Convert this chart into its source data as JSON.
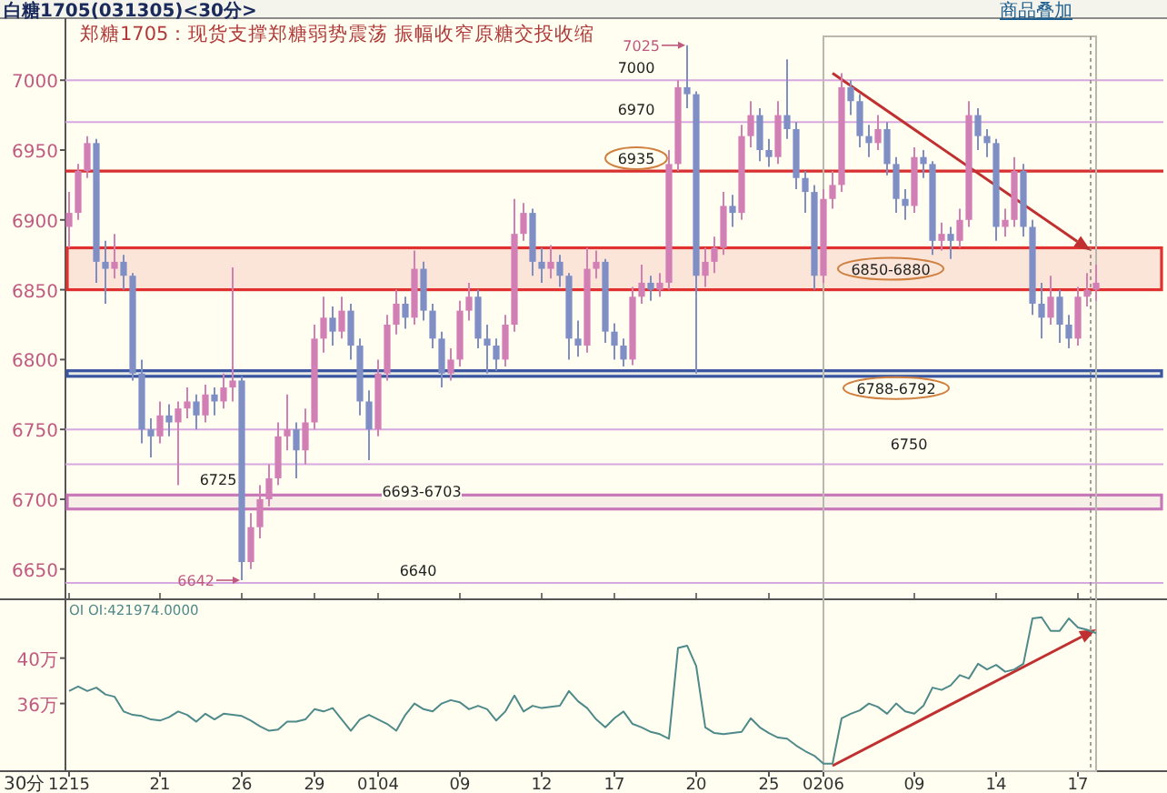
{
  "chart_data": [
    {
      "type": "candlestick",
      "title": "白糖1705(031305)<30分>",
      "subtitle": "郑糖1705：现货支撑郑糖弱势震荡 振幅收窄原糖交投收缩",
      "categories": [
        "1215",
        null,
        null,
        null,
        null,
        null,
        null,
        null,
        null,
        null,
        "21",
        null,
        null,
        null,
        null,
        null,
        null,
        null,
        null,
        "26",
        null,
        null,
        null,
        null,
        null,
        null,
        null,
        "29",
        null,
        null,
        null,
        null,
        null,
        null,
        "0104",
        null,
        null,
        null,
        null,
        null,
        null,
        null,
        null,
        "09",
        null,
        null,
        null,
        null,
        null,
        null,
        null,
        null,
        "12",
        null,
        null,
        null,
        null,
        null,
        null,
        null,
        "17",
        null,
        null,
        null,
        null,
        null,
        null,
        null,
        null,
        "20",
        null,
        null,
        null,
        null,
        null,
        null,
        null,
        "25",
        null,
        null,
        null,
        null,
        null,
        "0206",
        null,
        null,
        null,
        null,
        null,
        null,
        null,
        null,
        null,
        "09",
        null,
        null,
        null,
        null,
        null,
        null,
        null,
        null,
        "14",
        null,
        null,
        null,
        null,
        null,
        null,
        null,
        null,
        "17",
        null,
        null
      ],
      "ohlc": [
        [
          6895,
          6920,
          6880,
          6905
        ],
        [
          6905,
          6940,
          6900,
          6935
        ],
        [
          6935,
          6960,
          6930,
          6955
        ],
        [
          6955,
          6958,
          6855,
          6870
        ],
        [
          6870,
          6885,
          6840,
          6865
        ],
        [
          6865,
          6890,
          6858,
          6870
        ],
        [
          6870,
          6875,
          6850,
          6860
        ],
        [
          6860,
          6862,
          6785,
          6790
        ],
        [
          6790,
          6800,
          6740,
          6750
        ],
        [
          6750,
          6758,
          6730,
          6745
        ],
        [
          6745,
          6770,
          6740,
          6760
        ],
        [
          6760,
          6768,
          6745,
          6755
        ],
        [
          6755,
          6770,
          6710,
          6765
        ],
        [
          6765,
          6780,
          6758,
          6770
        ],
        [
          6770,
          6775,
          6750,
          6760
        ],
        [
          6760,
          6782,
          6755,
          6775
        ],
        [
          6775,
          6780,
          6760,
          6770
        ],
        [
          6770,
          6790,
          6765,
          6780
        ],
        [
          6780,
          6866,
          6770,
          6785
        ],
        [
          6785,
          6788,
          6642,
          6655
        ],
        [
          6655,
          6690,
          6650,
          6680
        ],
        [
          6680,
          6710,
          6672,
          6700
        ],
        [
          6700,
          6725,
          6695,
          6715
        ],
        [
          6715,
          6755,
          6710,
          6745
        ],
        [
          6745,
          6775,
          6735,
          6750
        ],
        [
          6750,
          6755,
          6715,
          6735
        ],
        [
          6735,
          6765,
          6725,
          6755
        ],
        [
          6755,
          6825,
          6750,
          6815
        ],
        [
          6815,
          6845,
          6805,
          6830
        ],
        [
          6830,
          6838,
          6810,
          6820
        ],
        [
          6820,
          6845,
          6815,
          6835
        ],
        [
          6835,
          6840,
          6800,
          6810
        ],
        [
          6810,
          6815,
          6760,
          6770
        ],
        [
          6770,
          6778,
          6728,
          6750
        ],
        [
          6750,
          6800,
          6745,
          6790
        ],
        [
          6790,
          6832,
          6785,
          6825
        ],
        [
          6825,
          6850,
          6818,
          6840
        ],
        [
          6840,
          6845,
          6822,
          6830
        ],
        [
          6830,
          6878,
          6825,
          6865
        ],
        [
          6865,
          6870,
          6828,
          6835
        ],
        [
          6835,
          6840,
          6808,
          6815
        ],
        [
          6815,
          6820,
          6780,
          6790
        ],
        [
          6790,
          6808,
          6785,
          6800
        ],
        [
          6800,
          6842,
          6795,
          6835
        ],
        [
          6835,
          6855,
          6828,
          6845
        ],
        [
          6845,
          6850,
          6808,
          6815
        ],
        [
          6815,
          6825,
          6790,
          6810
        ],
        [
          6810,
          6815,
          6792,
          6800
        ],
        [
          6800,
          6832,
          6795,
          6825
        ],
        [
          6825,
          6915,
          6820,
          6890
        ],
        [
          6890,
          6912,
          6885,
          6905
        ],
        [
          6905,
          6908,
          6860,
          6870
        ],
        [
          6870,
          6880,
          6855,
          6865
        ],
        [
          6865,
          6882,
          6858,
          6870
        ],
        [
          6870,
          6875,
          6852,
          6860
        ],
        [
          6860,
          6862,
          6800,
          6815
        ],
        [
          6815,
          6828,
          6802,
          6810
        ],
        [
          6810,
          6880,
          6805,
          6865
        ],
        [
          6865,
          6878,
          6858,
          6870
        ],
        [
          6870,
          6872,
          6812,
          6820
        ],
        [
          6820,
          6826,
          6800,
          6810
        ],
        [
          6810,
          6815,
          6795,
          6800
        ],
        [
          6800,
          6852,
          6796,
          6845
        ],
        [
          6845,
          6868,
          6840,
          6855
        ],
        [
          6855,
          6860,
          6842,
          6850
        ],
        [
          6850,
          6862,
          6845,
          6855
        ],
        [
          6855,
          6950,
          6850,
          6940
        ],
        [
          6940,
          7000,
          6935,
          6995
        ],
        [
          6995,
          7025,
          6980,
          6990
        ],
        [
          6990,
          6992,
          6790,
          6860
        ],
        [
          6860,
          6880,
          6852,
          6870
        ],
        [
          6870,
          6888,
          6862,
          6880
        ],
        [
          6880,
          6920,
          6875,
          6910
        ],
        [
          6910,
          6918,
          6895,
          6905
        ],
        [
          6905,
          6968,
          6900,
          6960
        ],
        [
          6960,
          6985,
          6952,
          6975
        ],
        [
          6975,
          6980,
          6942,
          6950
        ],
        [
          6950,
          6958,
          6938,
          6945
        ],
        [
          6945,
          6985,
          6940,
          6975
        ],
        [
          6975,
          7015,
          6958,
          6965
        ],
        [
          6965,
          6970,
          6922,
          6930
        ],
        [
          6930,
          6935,
          6905,
          6920
        ],
        [
          6920,
          6925,
          6850,
          6860
        ],
        [
          6860,
          6922,
          6855,
          6915
        ],
        [
          6915,
          6935,
          6908,
          6925
        ],
        [
          6925,
          7005,
          6920,
          6995
        ],
        [
          6995,
          7000,
          6975,
          6985
        ],
        [
          6985,
          6990,
          6952,
          6960
        ],
        [
          6960,
          6968,
          6945,
          6955
        ],
        [
          6955,
          6975,
          6950,
          6965
        ],
        [
          6965,
          6970,
          6932,
          6940
        ],
        [
          6940,
          6945,
          6905,
          6915
        ],
        [
          6915,
          6922,
          6900,
          6910
        ],
        [
          6910,
          6952,
          6905,
          6945
        ],
        [
          6945,
          6950,
          6930,
          6940
        ],
        [
          6940,
          6942,
          6875,
          6885
        ],
        [
          6885,
          6898,
          6878,
          6890
        ],
        [
          6890,
          6895,
          6872,
          6885
        ],
        [
          6885,
          6908,
          6880,
          6900
        ],
        [
          6900,
          6985,
          6895,
          6975
        ],
        [
          6975,
          6980,
          6950,
          6960
        ],
        [
          6960,
          6965,
          6945,
          6955
        ],
        [
          6955,
          6958,
          6885,
          6895
        ],
        [
          6895,
          6908,
          6888,
          6900
        ],
        [
          6900,
          6945,
          6895,
          6935
        ],
        [
          6935,
          6940,
          6888,
          6895
        ],
        [
          6895,
          6900,
          6832,
          6840
        ],
        [
          6840,
          6855,
          6815,
          6830
        ],
        [
          6830,
          6860,
          6825,
          6845
        ],
        [
          6845,
          6850,
          6812,
          6825
        ],
        [
          6825,
          6832,
          6808,
          6815
        ],
        [
          6815,
          6852,
          6810,
          6845
        ],
        [
          6845,
          6862,
          6838,
          6850
        ],
        [
          6850,
          6868,
          6842,
          6855
        ]
      ],
      "ylim": [
        6629,
        7034
      ],
      "yticks": [
        6650,
        6700,
        6750,
        6800,
        6850,
        6900,
        6950,
        7000
      ],
      "tick_labels": "y",
      "ref_lines": [
        {
          "axis": "y",
          "value": 7000,
          "label": "7000",
          "color": "#d8a8e0"
        },
        {
          "axis": "y",
          "value": 6970,
          "label": "6970",
          "color": "#d8a8e0"
        },
        {
          "axis": "y",
          "value": 6935,
          "label": "6935",
          "color": "#d83030"
        },
        {
          "axis": "y",
          "value": 6750,
          "label": "6750",
          "color": "#d8a8e0"
        },
        {
          "axis": "y",
          "value": 6725,
          "label": "6725",
          "color": "#d8a8e0"
        },
        {
          "axis": "y",
          "value": 6640,
          "label": "6640",
          "color": "#d8a8e0"
        }
      ],
      "bands": [
        {
          "axis": "y",
          "from": 6850,
          "to": 6880,
          "label": "6850-6880",
          "color": "#e03030"
        },
        {
          "axis": "y",
          "from": 6788,
          "to": 6792,
          "label": "6788-6792",
          "color": "#3a56a0"
        },
        {
          "axis": "y",
          "from": 6693,
          "to": 6703,
          "label": "6693-6703",
          "color": "#c878b8"
        }
      ],
      "annotations": [
        "7025",
        "6642",
        "商品叠加"
      ]
    },
    {
      "type": "line",
      "title": "OI OI:421974.0000",
      "xlabel": "30分",
      "categories": [
        "1215",
        null,
        null,
        null,
        null,
        null,
        null,
        null,
        null,
        null,
        "21",
        null,
        null,
        null,
        null,
        null,
        null,
        null,
        null,
        "26",
        null,
        null,
        null,
        null,
        null,
        null,
        null,
        "29",
        null,
        null,
        null,
        null,
        null,
        null,
        "0104",
        null,
        null,
        null,
        null,
        null,
        null,
        null,
        null,
        "09",
        null,
        null,
        null,
        null,
        null,
        null,
        null,
        null,
        "12",
        null,
        null,
        null,
        null,
        null,
        null,
        null,
        "17",
        null,
        null,
        null,
        null,
        null,
        null,
        null,
        null,
        "20",
        null,
        null,
        null,
        null,
        null,
        null,
        null,
        "25",
        null,
        null,
        null,
        null,
        null,
        "0206",
        null,
        null,
        null,
        null,
        null,
        null,
        null,
        null,
        null,
        "09",
        null,
        null,
        null,
        null,
        null,
        null,
        null,
        null,
        "14",
        null,
        null,
        null,
        null,
        null,
        null,
        null,
        null,
        "17",
        null,
        null
      ],
      "series": [
        {
          "color": "#4f8a8a",
          "values": [
            37.1,
            37.5,
            37.1,
            37.4,
            36.8,
            36.6,
            35.3,
            35.0,
            34.9,
            34.6,
            34.5,
            34.8,
            35.3,
            35.0,
            34.4,
            35.1,
            34.6,
            35.1,
            35.0,
            34.9,
            34.5,
            34.0,
            33.6,
            33.7,
            34.4,
            34.4,
            34.6,
            35.5,
            35.3,
            35.6,
            34.6,
            33.6,
            34.6,
            35.0,
            34.6,
            34.2,
            33.6,
            35.0,
            36.0,
            35.5,
            35.3,
            36.0,
            36.3,
            36.1,
            35.5,
            35.8,
            35.5,
            34.5,
            35.3,
            36.7,
            35.3,
            35.8,
            35.6,
            35.7,
            35.8,
            37.1,
            36.2,
            35.6,
            34.6,
            33.9,
            34.7,
            35.3,
            34.2,
            33.9,
            33.5,
            33.3,
            32.9,
            40.9,
            41.1,
            39.3,
            33.9,
            33.4,
            33.3,
            33.4,
            33.5,
            34.7,
            33.9,
            33.4,
            33.0,
            32.9,
            32.3,
            31.8,
            31.4,
            30.7,
            30.7,
            34.7,
            35.1,
            35.4,
            36.0,
            35.7,
            35.1,
            36.0,
            35.3,
            35.1,
            35.8,
            37.4,
            37.2,
            37.6,
            38.5,
            38.2,
            39.5,
            39.0,
            39.4,
            38.8,
            39.0,
            39.5,
            43.5,
            43.6,
            42.4,
            42.4,
            43.5,
            42.7,
            42.5,
            42.2
          ]
        }
      ],
      "ylim": [
        30.2,
        45.1
      ],
      "yticks": [
        {
          "value": 36,
          "label": "36万"
        },
        {
          "value": 40,
          "label": "40万"
        }
      ]
    }
  ]
}
